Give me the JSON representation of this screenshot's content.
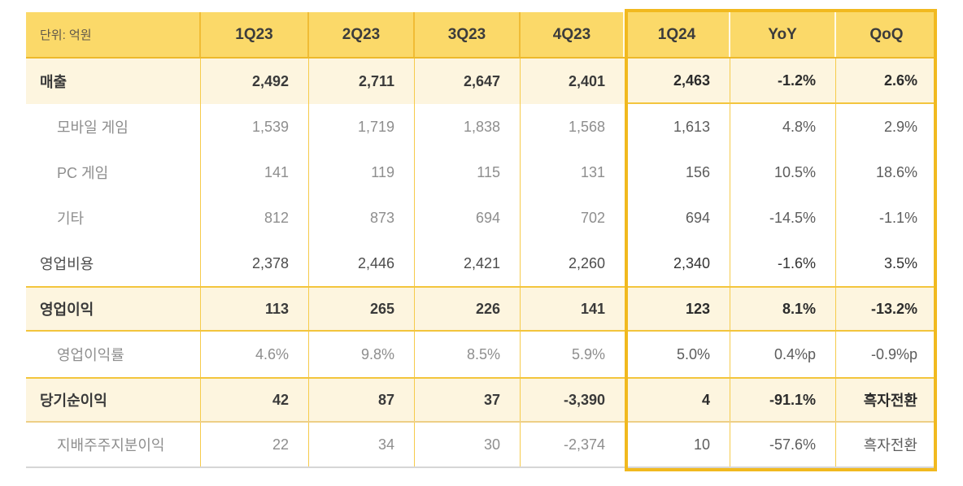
{
  "table": {
    "unit_label": "단위: 억원",
    "columns": [
      "1Q23",
      "2Q23",
      "3Q23",
      "4Q23",
      "1Q24",
      "YoY",
      "QoQ"
    ],
    "rows": [
      {
        "label": "매출",
        "style": "highlight",
        "values": [
          "2,492",
          "2,711",
          "2,647",
          "2,401",
          "2,463",
          "-1.2%",
          "2.6%"
        ]
      },
      {
        "label": "모바일 게임",
        "style": "sub",
        "values": [
          "1,539",
          "1,719",
          "1,838",
          "1,568",
          "1,613",
          "4.8%",
          "2.9%"
        ]
      },
      {
        "label": "PC 게임",
        "style": "sub",
        "values": [
          "141",
          "119",
          "115",
          "131",
          "156",
          "10.5%",
          "18.6%"
        ]
      },
      {
        "label": "기타",
        "style": "sub",
        "values": [
          "812",
          "873",
          "694",
          "702",
          "694",
          "-14.5%",
          "-1.1%"
        ]
      },
      {
        "label": "영업비용",
        "style": "main",
        "values": [
          "2,378",
          "2,446",
          "2,421",
          "2,260",
          "2,340",
          "-1.6%",
          "3.5%"
        ]
      },
      {
        "label": "영업이익",
        "style": "highlight",
        "values": [
          "113",
          "265",
          "226",
          "141",
          "123",
          "8.1%",
          "-13.2%"
        ]
      },
      {
        "label": "영업이익률",
        "style": "sub",
        "values": [
          "4.6%",
          "9.8%",
          "8.5%",
          "5.9%",
          "5.0%",
          "0.4%p",
          "-0.9%p"
        ]
      },
      {
        "label": "당기순이익",
        "style": "highlight",
        "values": [
          "42",
          "87",
          "37",
          "-3,390",
          "4",
          "-91.1%",
          "흑자전환"
        ]
      },
      {
        "label": "지배주주지분이익",
        "style": "sub",
        "values": [
          "22",
          "34",
          "30",
          "-2,374",
          "10",
          "-57.6%",
          "흑자전환"
        ]
      }
    ],
    "colors": {
      "header_bg": "#FBD969",
      "highlight_row_bg": "#FDF5DF",
      "grid_line": "#F6CB4B",
      "block_border": "#F1B91F"
    }
  }
}
